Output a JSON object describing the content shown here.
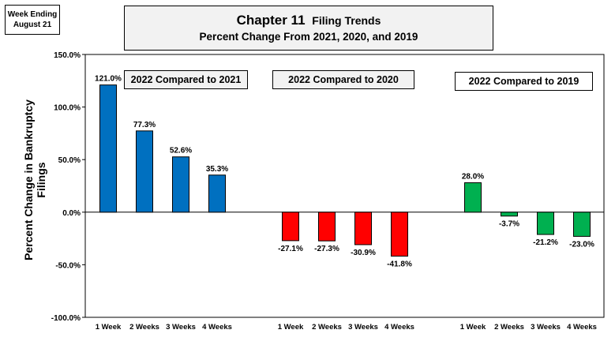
{
  "header": {
    "week_line1": "Week Ending",
    "week_line2": "August 21",
    "title_main": "Chapter 11",
    "title_sub_word": "Filing Trends",
    "title_line2": "Percent Change From 2021, 2020, and 2019"
  },
  "chart_data": {
    "type": "bar",
    "ylabel": "Percent Change in Bankruptcy Filings",
    "ylim": [
      -100,
      150
    ],
    "yticks": [
      "150.0%",
      "100.0%",
      "50.0%",
      "0.0%",
      "-50.0%",
      "-100.0%"
    ],
    "ytick_values": [
      150,
      100,
      50,
      0,
      -50,
      -100
    ],
    "grid": false,
    "groups": [
      {
        "name": "2022 Compared to 2021",
        "color": "#0070c0",
        "categories": [
          "1 Week",
          "2 Weeks",
          "3 Weeks",
          "4 Weeks"
        ],
        "values": [
          121.0,
          77.3,
          52.6,
          35.3
        ],
        "labels": [
          "121.0%",
          "77.3%",
          "52.6%",
          "35.3%"
        ]
      },
      {
        "name": "2022 Compared to 2020",
        "color": "#ff0000",
        "categories": [
          "1 Week",
          "2 Weeks",
          "3 Weeks",
          "4 Weeks"
        ],
        "values": [
          -27.1,
          -27.3,
          -30.9,
          -41.8
        ],
        "labels": [
          "-27.1%",
          "-27.3%",
          "-30.9%",
          "-41.8%"
        ]
      },
      {
        "name": "2022 Compared to 2019",
        "color": "#00b050",
        "categories": [
          "1 Week",
          "2 Weeks",
          "3 Weeks",
          "4 Weeks"
        ],
        "values": [
          28.0,
          -3.7,
          -21.2,
          -23.0
        ],
        "labels": [
          "28.0%",
          "-3.7%",
          "-21.2%",
          "-23.0%"
        ]
      }
    ]
  }
}
